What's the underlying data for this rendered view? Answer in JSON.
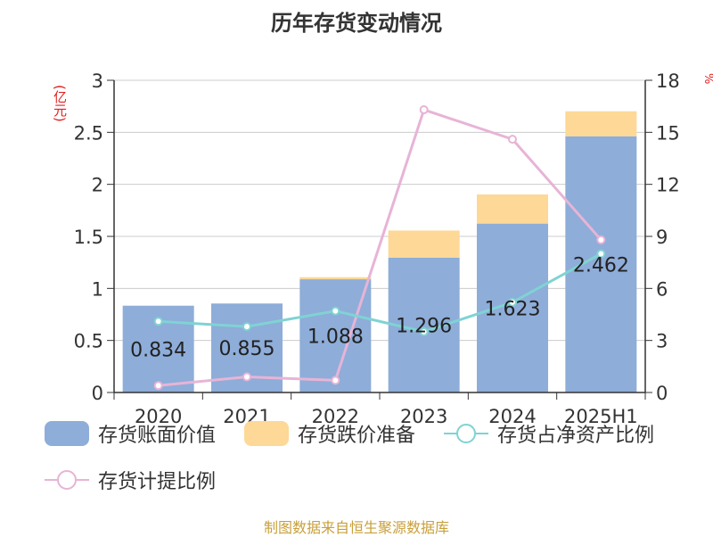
{
  "title": "历年存货变动情况",
  "source": "制图数据来自恒生聚源数据库",
  "chart_data": {
    "type": "bar",
    "title": "历年存货变动情况",
    "categories": [
      "2020",
      "2021",
      "2022",
      "2023",
      "2024",
      "2025H1"
    ],
    "left_axis": {
      "unit": "(亿元)",
      "ylim": [
        0,
        3
      ],
      "ticks": [
        "0",
        "0.5",
        "1",
        "1.5",
        "2",
        "2.5",
        "3"
      ]
    },
    "right_axis": {
      "unit": "%",
      "ylim": [
        0,
        18
      ],
      "ticks": [
        "0",
        "3",
        "6",
        "9",
        "12",
        "15",
        "18"
      ]
    },
    "series": [
      {
        "name": "存货账面价值",
        "kind": "bar",
        "axis": "left",
        "color": "#8eadd9",
        "values": [
          0.834,
          0.855,
          1.088,
          1.296,
          1.623,
          2.462
        ],
        "labels": [
          "0.834",
          "0.855",
          "1.088",
          "1.296",
          "1.623",
          "2.462"
        ]
      },
      {
        "name": "存货跌价准备",
        "kind": "bar-stacked",
        "axis": "left",
        "color": "#fdd896",
        "values": [
          0.0,
          0.0,
          0.02,
          0.26,
          0.28,
          0.24
        ]
      },
      {
        "name": "存货占净资产比例",
        "kind": "line",
        "axis": "right",
        "color": "#7fd3d3",
        "values": [
          4.1,
          3.8,
          4.7,
          3.5,
          5.2,
          8.0
        ]
      },
      {
        "name": "存货计提比例",
        "kind": "line",
        "axis": "right",
        "color": "#e7b4d6",
        "values": [
          0.4,
          0.9,
          0.7,
          16.3,
          14.6,
          8.8
        ]
      }
    ],
    "grid": true,
    "legend_position": "bottom"
  }
}
